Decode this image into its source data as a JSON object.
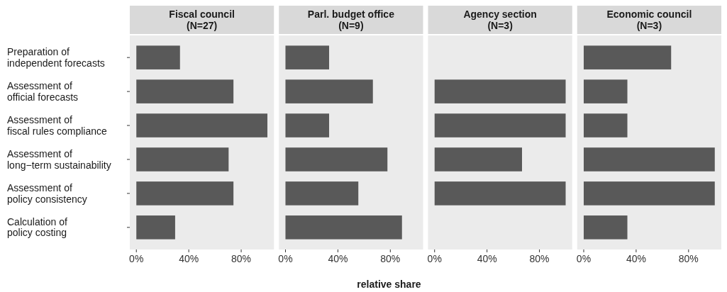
{
  "chart_data": [
    {
      "type": "bar",
      "orientation": "horizontal",
      "title": "Fiscal council\n(N=27)",
      "categories": [
        "Preparation of\nindependent forecasts",
        "Assessment of\nofficial forecasts",
        "Assessment of\nfiscal rules compliance",
        "Assessment of\nlong−term sustainability",
        "Assessment of\npolicy consistency",
        "Calculation of\npolicy costing"
      ],
      "values": [
        33.3,
        74.1,
        100,
        70.4,
        74.1,
        29.6
      ],
      "color": "#595959",
      "xlim": [
        -5,
        105
      ],
      "xticks": [
        {
          "value": 0,
          "label": "0%"
        },
        {
          "value": 40,
          "label": "40%"
        },
        {
          "value": 80,
          "label": "80%"
        }
      ]
    },
    {
      "type": "bar",
      "orientation": "horizontal",
      "title": "Parl. budget office\n(N=9)",
      "xlabel": "relative share",
      "categories": [
        null,
        null,
        null,
        null,
        null,
        null
      ],
      "values": [
        33.3,
        66.7,
        33.3,
        77.8,
        55.6,
        88.9
      ],
      "color": "#595959",
      "xlim": [
        -5,
        105
      ],
      "xticks": [
        {
          "value": 0,
          "label": "0%"
        },
        {
          "value": 40,
          "label": "40%"
        },
        {
          "value": 80,
          "label": "80%"
        }
      ],
      "tick_labels": "x"
    },
    {
      "type": "bar",
      "orientation": "horizontal",
      "title": "Agency section\n(N=3)",
      "categories": [
        null,
        null,
        null,
        null,
        null,
        null
      ],
      "values": [
        null,
        100,
        100,
        66.7,
        100,
        null
      ],
      "color": "#595959",
      "xlim": [
        -5,
        105
      ],
      "xticks": [
        {
          "value": 0,
          "label": "0%"
        },
        {
          "value": 40,
          "label": "40%"
        },
        {
          "value": 80,
          "label": "80%"
        }
      ],
      "tick_labels": "x"
    },
    {
      "type": "bar",
      "orientation": "horizontal",
      "title": "Economic council\n(N=3)",
      "categories": [
        null,
        null,
        null,
        null,
        null,
        null
      ],
      "values": [
        66.7,
        33.3,
        33.3,
        100,
        100,
        33.3
      ],
      "color": "#595959",
      "xlim": [
        -5,
        105
      ],
      "xticks": [
        {
          "value": 0,
          "label": "0%"
        },
        {
          "value": 40,
          "label": "40%"
        },
        {
          "value": 80,
          "label": "80%"
        }
      ],
      "tick_labels": "x"
    }
  ]
}
